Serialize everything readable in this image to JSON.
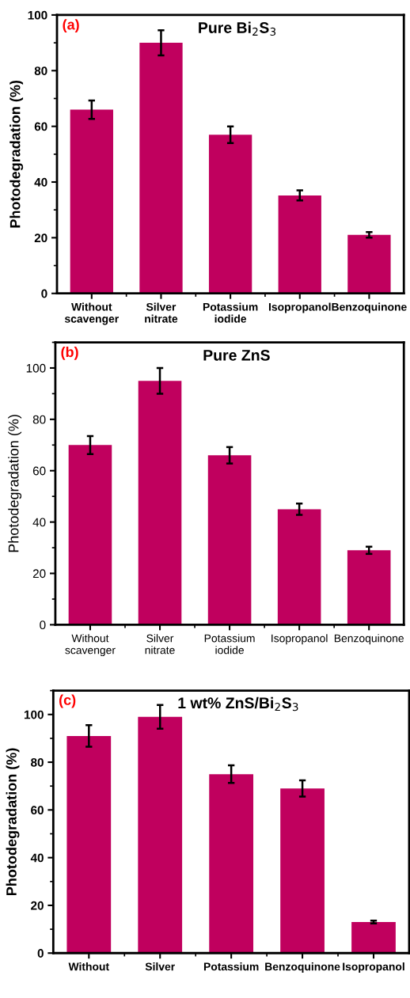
{
  "chart_data": [
    {
      "type": "bar",
      "title": "Pure Bi$_{2}$S$_{3}$",
      "ylabel": "Photodegradation (%)",
      "annotations": [
        "(a)"
      ],
      "categories": [
        "Without\nscavenger",
        "Silver\nnitrate",
        "Potassium\niodide",
        "Isopropanol",
        "Benzoquinone"
      ],
      "values": [
        66,
        90,
        57,
        35.2,
        21
      ],
      "errors": [
        3.3,
        4.5,
        3,
        1.8,
        1
      ],
      "color": "#c0005e",
      "ylim": [
        0,
        100
      ],
      "yticks": [
        0,
        20,
        40,
        60,
        80,
        100
      ],
      "grid": false,
      "legend": false
    },
    {
      "type": "bar",
      "title": "Pure ZnS",
      "ylabel": "Photodegradation (%)",
      "annotations": [
        "(b)"
      ],
      "categories": [
        "Without\nscavenger",
        "Silver\nnitrate",
        "Potassium\niodide",
        "Isopropanol",
        "Benzoquinone"
      ],
      "values": [
        70,
        95,
        66,
        45,
        29
      ],
      "errors": [
        3.5,
        5,
        3.2,
        2.2,
        1.4
      ],
      "color": "#c0005e",
      "ylim": [
        0,
        110
      ],
      "yticks": [
        0,
        20,
        40,
        60,
        80,
        100
      ],
      "grid": false,
      "legend": false
    },
    {
      "type": "bar",
      "title": "1 wt% ZnS/Bi$_{2}$S$_{3}$",
      "ylabel": "Photodegradation (%)",
      "annotations": [
        "(c)"
      ],
      "categories": [
        "Without",
        "Silver",
        "Potassium",
        "Benzoquinone",
        "Isopropanol"
      ],
      "values": [
        91,
        99,
        75,
        69,
        13
      ],
      "errors": [
        4.5,
        5,
        3.7,
        3.4,
        0.6
      ],
      "color": "#c0005e",
      "ylim": [
        0,
        110
      ],
      "yticks": [
        0,
        20,
        40,
        60,
        80,
        100
      ],
      "grid": false,
      "legend": false
    }
  ]
}
